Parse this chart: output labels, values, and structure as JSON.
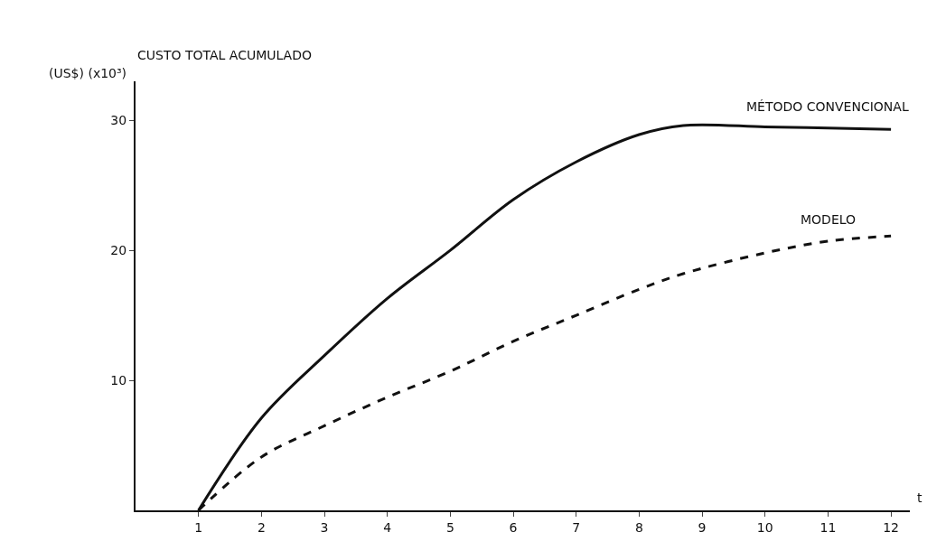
{
  "chart_data": {
    "type": "line",
    "title": "CUSTO TOTAL ACUMULADO",
    "ylabel": "(US$) (x10³)",
    "xlabel": "t",
    "x": [
      1,
      2,
      3,
      4,
      5,
      6,
      7,
      8,
      8.7,
      10,
      11,
      12
    ],
    "series": [
      {
        "name": "MÉTODO CONVENCIONAL",
        "color": "#111111",
        "line_style": "solid",
        "values": [
          0,
          7.1,
          11.9,
          16.3,
          20,
          23.9,
          26.8,
          28.9,
          29.6,
          29.5,
          29.4,
          29.3
        ]
      },
      {
        "name": "MODELO",
        "color": "#111111",
        "line_style": "dashed",
        "values": [
          0,
          4.1,
          6.5,
          8.7,
          10.7,
          13,
          15,
          17,
          18.2,
          19.8,
          20.7,
          21.1
        ]
      }
    ],
    "xlim": [
      0,
      12.3
    ],
    "xticks": [
      1,
      2,
      3,
      4,
      5,
      6,
      7,
      8,
      9,
      10,
      11,
      12
    ],
    "ylim": [
      0,
      33
    ],
    "yticks": [
      10,
      20,
      30
    ],
    "grid": false,
    "legend": false,
    "marker": "none"
  }
}
